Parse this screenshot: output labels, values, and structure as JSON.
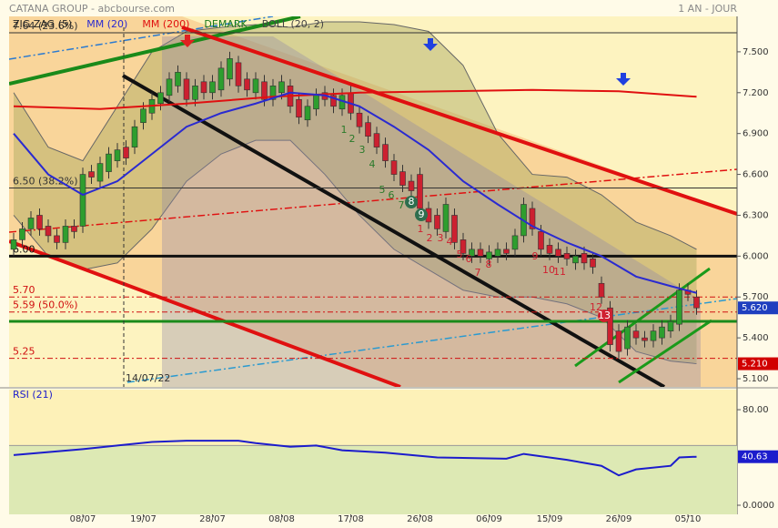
{
  "chart_data": {
    "type": "candlestick",
    "title": "CATANA GROUP - abcbourse.com",
    "subtitle": "1 AN - JOUR",
    "legend": [
      {
        "name": "ZIG ZAG (5)",
        "color": "#222222"
      },
      {
        "name": "MM (20)",
        "color": "#2a2ad0"
      },
      {
        "name": "MM (200)",
        "color": "#e01010"
      },
      {
        "name": "DEMARK",
        "color": "#1a7a1a"
      },
      {
        "name": "BOLL (20, 2)",
        "color": "#444444"
      }
    ],
    "categories": [
      null,
      null,
      null,
      null,
      null,
      null,
      null,
      null,
      "08/07",
      null,
      null,
      null,
      null,
      null,
      null,
      "19/07",
      null,
      null,
      null,
      null,
      null,
      null,
      null,
      "28/07",
      null,
      null,
      null,
      null,
      null,
      null,
      null,
      "08/08",
      null,
      null,
      null,
      null,
      null,
      null,
      null,
      "17/08",
      null,
      null,
      null,
      null,
      null,
      null,
      null,
      "26/08",
      null,
      null,
      null,
      null,
      null,
      null,
      null,
      "06/09",
      null,
      null,
      null,
      null,
      null,
      null,
      "15/09",
      null,
      null,
      null,
      null,
      null,
      null,
      null,
      "26/09",
      null,
      null,
      null,
      null,
      null,
      null,
      null,
      "05/10",
      null
    ],
    "open": [
      6.05,
      6.12,
      6.2,
      6.3,
      6.22,
      6.15,
      6.1,
      6.22,
      6.22,
      6.62,
      6.55,
      6.62,
      6.7,
      6.8,
      6.8,
      6.98,
      7.05,
      7.12,
      7.18,
      7.25,
      7.3,
      7.15,
      7.28,
      7.2,
      7.22,
      7.3,
      7.42,
      7.3,
      7.2,
      7.28,
      7.15,
      7.2,
      7.25,
      7.15,
      7.0,
      7.08,
      7.2,
      7.18,
      7.08,
      7.2,
      7.05,
      6.98,
      6.9,
      6.82,
      6.7,
      6.62,
      6.55,
      6.6,
      6.35,
      6.3,
      6.18,
      6.3,
      6.12,
      6.0,
      6.05,
      5.98,
      6.0,
      6.05,
      6.05,
      6.15,
      6.35,
      6.18,
      6.08,
      6.05,
      6.02,
      5.95,
      6.02,
      5.98,
      5.8,
      5.62,
      5.45,
      5.32,
      5.45,
      5.4,
      5.38,
      5.4,
      5.45,
      5.5,
      5.75,
      5.7
    ],
    "high": [
      6.17,
      6.25,
      6.33,
      6.35,
      6.27,
      6.2,
      6.27,
      6.27,
      6.65,
      6.67,
      6.73,
      6.8,
      6.83,
      6.85,
      7.0,
      7.13,
      7.2,
      7.25,
      7.35,
      7.4,
      7.35,
      7.3,
      7.33,
      7.33,
      7.43,
      7.5,
      7.47,
      7.35,
      7.35,
      7.33,
      7.3,
      7.33,
      7.3,
      7.2,
      7.15,
      7.23,
      7.25,
      7.23,
      7.23,
      7.25,
      7.1,
      7.03,
      6.95,
      6.87,
      6.75,
      6.67,
      6.6,
      6.65,
      6.4,
      6.35,
      6.43,
      6.35,
      6.17,
      6.1,
      6.1,
      6.08,
      6.1,
      6.1,
      6.2,
      6.43,
      6.4,
      6.23,
      6.13,
      6.1,
      6.07,
      6.05,
      6.07,
      6.03,
      5.85,
      5.67,
      5.5,
      5.53,
      5.5,
      5.45,
      5.5,
      5.53,
      5.57,
      5.8,
      5.8,
      5.75
    ],
    "low": [
      6.0,
      6.07,
      6.15,
      6.15,
      6.1,
      6.05,
      6.05,
      6.13,
      6.17,
      6.53,
      6.5,
      6.57,
      6.65,
      6.67,
      6.75,
      6.93,
      7.0,
      7.07,
      7.13,
      7.2,
      7.1,
      7.1,
      7.15,
      7.15,
      7.17,
      7.25,
      7.2,
      7.17,
      7.15,
      7.1,
      7.1,
      7.15,
      7.05,
      6.97,
      6.95,
      7.03,
      7.1,
      7.05,
      7.03,
      7.0,
      6.9,
      6.83,
      6.75,
      6.65,
      6.55,
      6.47,
      6.43,
      6.3,
      6.2,
      6.15,
      6.13,
      6.05,
      5.97,
      5.95,
      5.95,
      5.93,
      5.95,
      5.97,
      6.0,
      6.1,
      6.15,
      6.0,
      5.97,
      5.95,
      5.93,
      5.9,
      5.9,
      5.87,
      5.65,
      5.3,
      5.25,
      5.27,
      5.35,
      5.33,
      5.33,
      5.35,
      5.4,
      5.45,
      5.67,
      5.57
    ],
    "close": [
      6.12,
      6.2,
      6.28,
      6.2,
      6.15,
      6.1,
      6.22,
      6.18,
      6.6,
      6.58,
      6.68,
      6.75,
      6.78,
      6.72,
      6.95,
      7.08,
      7.15,
      7.2,
      7.3,
      7.35,
      7.15,
      7.25,
      7.2,
      7.28,
      7.38,
      7.45,
      7.25,
      7.22,
      7.3,
      7.15,
      7.25,
      7.28,
      7.1,
      7.02,
      7.1,
      7.18,
      7.15,
      7.1,
      7.18,
      7.05,
      6.95,
      6.88,
      6.8,
      6.7,
      6.6,
      6.52,
      6.48,
      6.35,
      6.25,
      6.2,
      6.38,
      6.1,
      6.02,
      6.05,
      6.0,
      6.03,
      6.05,
      6.02,
      6.15,
      6.38,
      6.2,
      6.05,
      6.02,
      6.0,
      5.98,
      6.0,
      5.95,
      5.92,
      5.7,
      5.35,
      5.3,
      5.48,
      5.4,
      5.38,
      5.45,
      5.48,
      5.52,
      5.75,
      5.72,
      5.62
    ],
    "up_color": "#2e9e2e",
    "down_color": "#cc2030",
    "ylim": [
      5.04,
      7.76
    ],
    "yticks": [
      {
        "value": 7.5,
        "label": "7.500"
      },
      {
        "value": 7.2,
        "label": "7.200"
      },
      {
        "value": 6.9,
        "label": "6.900"
      },
      {
        "value": 6.6,
        "label": "6.600"
      },
      {
        "value": 6.3,
        "label": "6.300"
      },
      {
        "value": 6.0,
        "label": "6.000"
      },
      {
        "value": 5.7,
        "label": "5.700"
      },
      {
        "value": 5.4,
        "label": "5.400"
      },
      {
        "value": 5.1,
        "label": "5.100"
      }
    ],
    "mm20": {
      "x": [
        0,
        4,
        8,
        12,
        16,
        20,
        24,
        28,
        32,
        36,
        40,
        44,
        48,
        52,
        56,
        60,
        64,
        68,
        72,
        76,
        79
      ],
      "values": [
        6.9,
        6.6,
        6.45,
        6.55,
        6.75,
        6.95,
        7.05,
        7.12,
        7.2,
        7.18,
        7.1,
        6.95,
        6.78,
        6.55,
        6.38,
        6.22,
        6.1,
        6.0,
        5.85,
        5.78,
        5.73
      ]
    },
    "mm200": {
      "x": [
        0,
        10,
        20,
        30,
        40,
        50,
        60,
        70,
        79
      ],
      "values": [
        7.1,
        7.08,
        7.12,
        7.17,
        7.2,
        7.21,
        7.22,
        7.21,
        7.17
      ]
    },
    "boll": {
      "x": [
        0,
        4,
        8,
        12,
        16,
        20,
        24,
        28,
        32,
        36,
        40,
        44,
        48,
        52,
        56,
        60,
        64,
        68,
        72,
        76,
        79
      ],
      "upper": [
        7.2,
        6.8,
        6.7,
        7.1,
        7.5,
        7.65,
        7.68,
        7.7,
        7.68,
        7.72,
        7.72,
        7.7,
        7.65,
        7.4,
        6.9,
        6.6,
        6.58,
        6.45,
        6.25,
        6.15,
        6.05
      ],
      "lower": [
        6.3,
        6.0,
        5.9,
        5.95,
        6.2,
        6.55,
        6.75,
        6.85,
        6.85,
        6.6,
        6.3,
        6.05,
        5.9,
        5.75,
        5.7,
        5.7,
        5.65,
        5.55,
        5.3,
        5.23,
        5.21
      ]
    },
    "levels": [
      {
        "value": 7.64,
        "label": "7.64 (23.6%)",
        "color": "#333333"
      },
      {
        "value": 6.5,
        "label": "6.50 (38.2%)",
        "color": "#333333"
      },
      {
        "value": 6.0,
        "label": "6.00",
        "color": "#111111"
      },
      {
        "value": 5.7,
        "label": "5.70",
        "color": "#d01010"
      },
      {
        "value": 5.59,
        "label": "5.59 (50.0%)",
        "color": "#d01010"
      },
      {
        "value": 5.25,
        "label": "5.25",
        "color": "#d01010"
      }
    ],
    "price_labels": [
      {
        "value": 5.62,
        "label": "5.620",
        "color": "#1f3fbf"
      },
      {
        "value": 5.21,
        "label": "5.210",
        "color": "#d10000"
      }
    ],
    "annotation": "14/07/22",
    "demark_buy": [
      1,
      2,
      3,
      4,
      5,
      6,
      7,
      8,
      9
    ],
    "demark_sell": [
      1,
      2,
      3,
      4,
      5,
      6,
      7,
      8,
      9,
      10,
      11,
      12,
      13
    ],
    "rsi": {
      "title": "RSI (21)",
      "x": [
        0,
        8,
        12,
        16,
        20,
        26,
        28,
        32,
        35,
        38,
        43,
        49,
        57,
        59,
        64,
        68,
        70,
        72,
        76,
        77,
        79
      ],
      "values": [
        42,
        47,
        50,
        53,
        54,
        54,
        52,
        49,
        50,
        46,
        44,
        40,
        39,
        43,
        38,
        33,
        25,
        30,
        33,
        40,
        40.63
      ],
      "ylim": [
        0,
        96.8
      ],
      "yticks": [
        {
          "value": 80,
          "label": "80.00"
        },
        {
          "value": 0,
          "label": "0.0000"
        }
      ],
      "threshold": 50,
      "color": "#1c1ccc"
    }
  }
}
